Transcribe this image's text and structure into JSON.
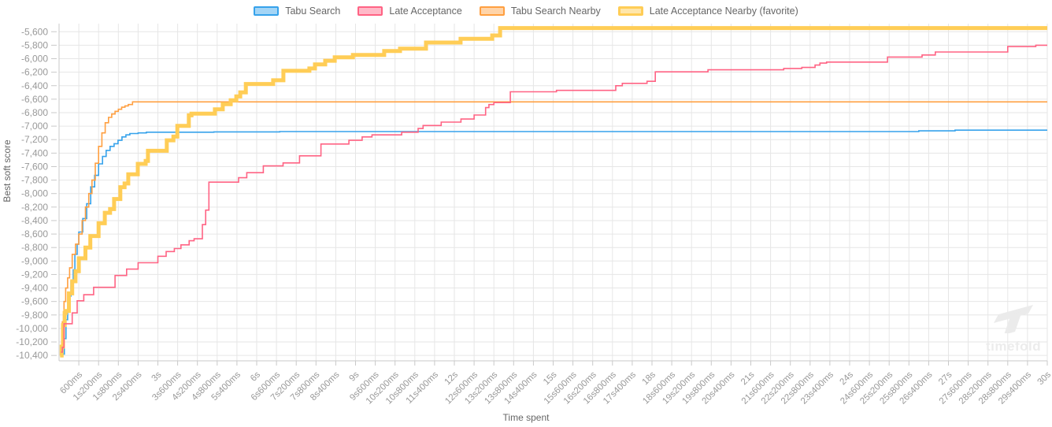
{
  "watermark": {
    "text": "timefold"
  },
  "chart_data": {
    "type": "line",
    "subtype": "step-after",
    "title": "",
    "xlabel": "Time spent",
    "ylabel": "Best soft score",
    "grid": true,
    "legend_position": "top",
    "x_range_ms": [
      0,
      30000
    ],
    "y_range": [
      -10480,
      -5480
    ],
    "x_tick_ms": [
      600,
      1200,
      1800,
      2400,
      3000,
      3600,
      4200,
      4800,
      5400,
      6000,
      6600,
      7200,
      7800,
      8400,
      9000,
      9600,
      10200,
      10800,
      11400,
      12000,
      12600,
      13200,
      13800,
      14400,
      15000,
      15600,
      16200,
      16800,
      17400,
      18000,
      18600,
      19200,
      19800,
      20400,
      21000,
      21600,
      22200,
      22800,
      23400,
      24000,
      24600,
      25200,
      25800,
      26400,
      27000,
      27600,
      28200,
      28800,
      29400,
      30000
    ],
    "x_tick_labels": [
      "600ms",
      "1s200ms",
      "1s800ms",
      "2s400ms",
      "3s",
      "3s600ms",
      "4s200ms",
      "4s800ms",
      "5s400ms",
      "6s",
      "6s600ms",
      "7s200ms",
      "7s800ms",
      "8s400ms",
      "9s",
      "9s600ms",
      "10s200ms",
      "10s800ms",
      "11s400ms",
      "12s",
      "12s600ms",
      "13s200ms",
      "13s800ms",
      "14s400ms",
      "15s",
      "15s600ms",
      "16s200ms",
      "16s800ms",
      "17s400ms",
      "18s",
      "18s600ms",
      "19s200ms",
      "19s800ms",
      "20s400ms",
      "21s",
      "21s600ms",
      "22s200ms",
      "22s800ms",
      "23s400ms",
      "24s",
      "24s600ms",
      "25s200ms",
      "25s800ms",
      "26s400ms",
      "27s",
      "27s600ms",
      "28s200ms",
      "28s800ms",
      "29s400ms",
      "30s"
    ],
    "y_tick_values": [
      -5600,
      -5800,
      -6000,
      -6200,
      -6400,
      -6600,
      -6800,
      -7000,
      -7200,
      -7400,
      -7600,
      -7800,
      -8000,
      -8200,
      -8400,
      -8600,
      -8800,
      -9000,
      -9200,
      -9400,
      -9600,
      -9800,
      -10000,
      -10200,
      -10400
    ],
    "y_tick_labels": [
      "-5,600",
      "-5,800",
      "-6,000",
      "-6,200",
      "-6,400",
      "-6,600",
      "-6,800",
      "-7,000",
      "-7,200",
      "-7,400",
      "-7,600",
      "-7,800",
      "-8,000",
      "-8,200",
      "-8,400",
      "-8,600",
      "-8,800",
      "-9,000",
      "-9,200",
      "-9,400",
      "-9,600",
      "-9,800",
      "-10,000",
      "-10,200",
      "-10,400"
    ],
    "series": [
      {
        "name": "Tabu Search",
        "color": "#36A2EB",
        "fill": "rgba(54,162,235,0.45)",
        "line_width": 1.6,
        "swatch_border_width": 2,
        "final_score": -7060,
        "points": [
          [
            120,
            -10380
          ],
          [
            160,
            -10150
          ],
          [
            210,
            -9870
          ],
          [
            260,
            -9700
          ],
          [
            310,
            -9520
          ],
          [
            360,
            -9300
          ],
          [
            430,
            -9130
          ],
          [
            480,
            -8900
          ],
          [
            550,
            -8750
          ],
          [
            600,
            -8570
          ],
          [
            720,
            -8370
          ],
          [
            840,
            -8150
          ],
          [
            960,
            -7900
          ],
          [
            1080,
            -7730
          ],
          [
            1200,
            -7560
          ],
          [
            1320,
            -7450
          ],
          [
            1430,
            -7360
          ],
          [
            1550,
            -7300
          ],
          [
            1670,
            -7260
          ],
          [
            1790,
            -7210
          ],
          [
            1910,
            -7160
          ],
          [
            2030,
            -7130
          ],
          [
            2150,
            -7110
          ],
          [
            2400,
            -7100
          ],
          [
            2650,
            -7090
          ],
          [
            4700,
            -7085
          ],
          [
            6700,
            -7080
          ],
          [
            26100,
            -7070
          ],
          [
            27200,
            -7060
          ],
          [
            30000,
            -7060
          ]
        ]
      },
      {
        "name": "Late Acceptance",
        "color": "#FF6384",
        "fill": "rgba(255,99,132,0.45)",
        "line_width": 1.6,
        "swatch_border_width": 2,
        "final_score": -5800,
        "points": [
          [
            60,
            -10350
          ],
          [
            100,
            -10280
          ],
          [
            150,
            -9930
          ],
          [
            400,
            -9770
          ],
          [
            550,
            -9590
          ],
          [
            750,
            -9500
          ],
          [
            1050,
            -9390
          ],
          [
            1700,
            -9215
          ],
          [
            2050,
            -9120
          ],
          [
            2400,
            -9025
          ],
          [
            3000,
            -8930
          ],
          [
            3250,
            -8860
          ],
          [
            3500,
            -8815
          ],
          [
            3700,
            -8760
          ],
          [
            3950,
            -8700
          ],
          [
            4100,
            -8670
          ],
          [
            4350,
            -8460
          ],
          [
            4450,
            -8245
          ],
          [
            4550,
            -7830
          ],
          [
            5450,
            -7765
          ],
          [
            5700,
            -7690
          ],
          [
            6200,
            -7590
          ],
          [
            6800,
            -7545
          ],
          [
            7300,
            -7440
          ],
          [
            7950,
            -7265
          ],
          [
            8800,
            -7210
          ],
          [
            9200,
            -7160
          ],
          [
            9500,
            -7130
          ],
          [
            10400,
            -7090
          ],
          [
            10900,
            -7035
          ],
          [
            11050,
            -6990
          ],
          [
            11600,
            -6940
          ],
          [
            12200,
            -6895
          ],
          [
            12600,
            -6835
          ],
          [
            12950,
            -6725
          ],
          [
            13050,
            -6680
          ],
          [
            13200,
            -6650
          ],
          [
            13700,
            -6490
          ],
          [
            15100,
            -6470
          ],
          [
            16900,
            -6400
          ],
          [
            17100,
            -6365
          ],
          [
            17850,
            -6335
          ],
          [
            18100,
            -6195
          ],
          [
            19700,
            -6165
          ],
          [
            22000,
            -6145
          ],
          [
            22550,
            -6130
          ],
          [
            22950,
            -6095
          ],
          [
            23100,
            -6065
          ],
          [
            23300,
            -6050
          ],
          [
            25150,
            -5975
          ],
          [
            26200,
            -5945
          ],
          [
            26600,
            -5900
          ],
          [
            28800,
            -5820
          ],
          [
            29650,
            -5800
          ],
          [
            30000,
            -5800
          ]
        ]
      },
      {
        "name": "Tabu Search Nearby",
        "color": "#FF9F40",
        "fill": "rgba(255,159,64,0.45)",
        "line_width": 1.6,
        "swatch_border_width": 2,
        "final_score": -6640,
        "points": [
          [
            50,
            -10300
          ],
          [
            100,
            -9900
          ],
          [
            150,
            -9600
          ],
          [
            200,
            -9400
          ],
          [
            260,
            -9250
          ],
          [
            320,
            -9100
          ],
          [
            400,
            -8900
          ],
          [
            500,
            -8750
          ],
          [
            600,
            -8600
          ],
          [
            700,
            -8400
          ],
          [
            800,
            -8200
          ],
          [
            900,
            -8000
          ],
          [
            1000,
            -7800
          ],
          [
            1100,
            -7550
          ],
          [
            1200,
            -7300
          ],
          [
            1300,
            -7100
          ],
          [
            1400,
            -6950
          ],
          [
            1500,
            -6870
          ],
          [
            1600,
            -6820
          ],
          [
            1700,
            -6780
          ],
          [
            1800,
            -6750
          ],
          [
            1900,
            -6720
          ],
          [
            2000,
            -6700
          ],
          [
            2100,
            -6680
          ],
          [
            2230,
            -6640
          ],
          [
            30000,
            -6640
          ]
        ]
      },
      {
        "name": "Late Acceptance Nearby (favorite)",
        "color": "#FFCD56",
        "fill": "rgba(255,205,86,0.5)",
        "line_width": 5,
        "swatch_border_width": 3,
        "final_score": -5545,
        "points": [
          [
            30,
            -10400
          ],
          [
            80,
            -10270
          ],
          [
            120,
            -9950
          ],
          [
            170,
            -9770
          ],
          [
            200,
            -9740
          ],
          [
            300,
            -9480
          ],
          [
            400,
            -9300
          ],
          [
            500,
            -9150
          ],
          [
            600,
            -8960
          ],
          [
            800,
            -8800
          ],
          [
            950,
            -8630
          ],
          [
            1200,
            -8440
          ],
          [
            1390,
            -8285
          ],
          [
            1550,
            -8230
          ],
          [
            1670,
            -8080
          ],
          [
            1860,
            -7905
          ],
          [
            1990,
            -7850
          ],
          [
            2100,
            -7715
          ],
          [
            2390,
            -7560
          ],
          [
            2630,
            -7515
          ],
          [
            2700,
            -7365
          ],
          [
            3270,
            -7210
          ],
          [
            3470,
            -7155
          ],
          [
            3590,
            -6995
          ],
          [
            3940,
            -6840
          ],
          [
            4020,
            -6815
          ],
          [
            4730,
            -6750
          ],
          [
            4970,
            -6675
          ],
          [
            5210,
            -6615
          ],
          [
            5380,
            -6560
          ],
          [
            5500,
            -6500
          ],
          [
            5670,
            -6375
          ],
          [
            6500,
            -6320
          ],
          [
            6810,
            -6180
          ],
          [
            7600,
            -6145
          ],
          [
            7770,
            -6085
          ],
          [
            8080,
            -6030
          ],
          [
            8370,
            -5980
          ],
          [
            8920,
            -5945
          ],
          [
            9870,
            -5885
          ],
          [
            10350,
            -5850
          ],
          [
            11140,
            -5760
          ],
          [
            12190,
            -5705
          ],
          [
            13150,
            -5655
          ],
          [
            13390,
            -5545
          ],
          [
            30000,
            -5545
          ]
        ]
      }
    ],
    "draw_order_bottom_to_top": [
      "Tabu Search",
      "Tabu Search Nearby",
      "Late Acceptance Nearby (favorite)",
      "Late Acceptance"
    ],
    "colors": {
      "grid": "#e6e6e6",
      "axis": "#c9c9c9",
      "tick_label": "#999999",
      "axis_title": "#666666",
      "legend_text": "#666666",
      "watermark": "#ececec"
    }
  }
}
